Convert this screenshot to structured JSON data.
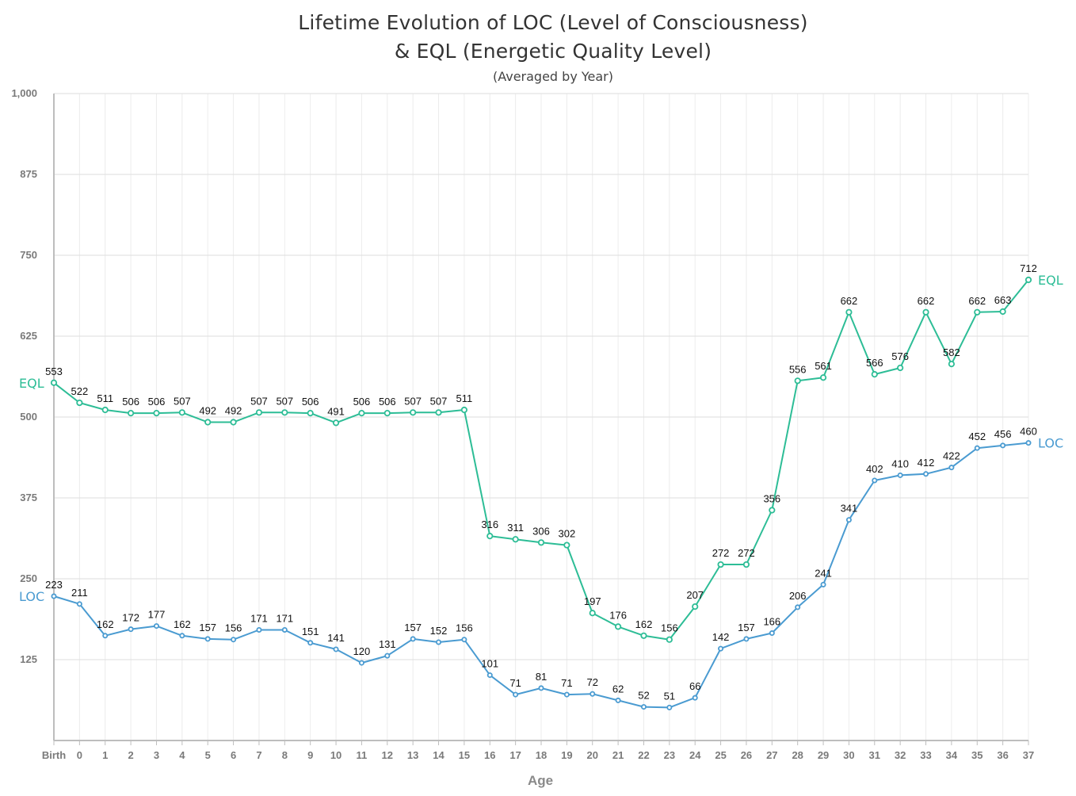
{
  "chart_data": {
    "type": "line",
    "title_line1": "Lifetime Evolution of LOC (Level of Consciousness)",
    "title_line2": "& EQL (Energetic Quality Level)",
    "subtitle": "(Averaged by Year)",
    "xlabel": "Age",
    "ylabel": "",
    "ylim": [
      0,
      1000
    ],
    "yticks": [
      125,
      250,
      375,
      500,
      625,
      750,
      875,
      1000
    ],
    "ytick_labels": [
      "125",
      "250",
      "375",
      "500",
      "625",
      "750",
      "875",
      "1,000"
    ],
    "grid": true,
    "categories": [
      "Birth",
      "0",
      "1",
      "2",
      "3",
      "4",
      "5",
      "6",
      "7",
      "8",
      "9",
      "10",
      "11",
      "12",
      "13",
      "14",
      "15",
      "16",
      "17",
      "18",
      "19",
      "20",
      "21",
      "22",
      "23",
      "24",
      "25",
      "26",
      "27",
      "28",
      "29",
      "30",
      "31",
      "32",
      "33",
      "34",
      "35",
      "36",
      "37"
    ],
    "series": [
      {
        "name": "EQL",
        "color": "#2dbd96",
        "values": [
          553,
          522,
          511,
          506,
          506,
          507,
          492,
          492,
          507,
          507,
          506,
          491,
          506,
          506,
          507,
          507,
          511,
          316,
          311,
          306,
          302,
          197,
          176,
          162,
          156,
          207,
          272,
          272,
          356,
          556,
          561,
          662,
          566,
          576,
          662,
          582,
          662,
          663,
          712
        ]
      },
      {
        "name": "LOC",
        "color": "#4a9bd1",
        "values": [
          223,
          211,
          162,
          172,
          177,
          162,
          157,
          156,
          171,
          171,
          151,
          141,
          120,
          131,
          157,
          152,
          156,
          101,
          71,
          81,
          71,
          72,
          62,
          52,
          51,
          66,
          142,
          157,
          166,
          206,
          241,
          341,
          402,
          410,
          412,
          422,
          452,
          456,
          460
        ]
      }
    ]
  }
}
